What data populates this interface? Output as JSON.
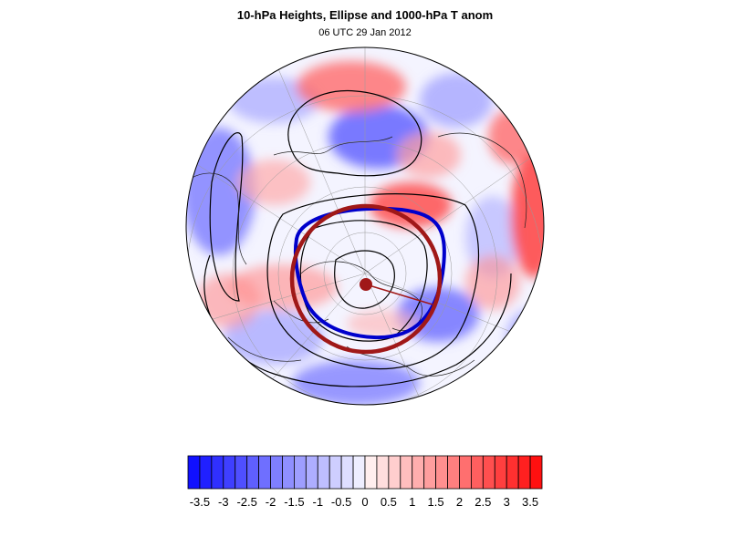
{
  "title": "10-hPa Heights, Ellipse and 1000-hPa T anom",
  "subtitle": "06 UTC 29 Jan 2012",
  "colors": {
    "cold": "#1010ff",
    "warm": "#ff1010",
    "neutral": "#ffffff",
    "height_contour": "#000000",
    "polar_vortex_edge": "#0000cc",
    "ellipse": "#a01818"
  },
  "colorbar": {
    "min": -3.75,
    "max": 3.75,
    "step": 0.25,
    "labels": [
      "-3.5",
      "-3",
      "-2.5",
      "-2",
      "-1.5",
      "-1",
      "-0.5",
      "0",
      "0.5",
      "1",
      "1.5",
      "2",
      "2.5",
      "3",
      "3.5"
    ]
  },
  "map": {
    "projection": "north-polar-stereographic",
    "fill_field": "1000-hPa T anom",
    "contour_field": "10-hPa Heights",
    "overlay": "Ellipse"
  }
}
